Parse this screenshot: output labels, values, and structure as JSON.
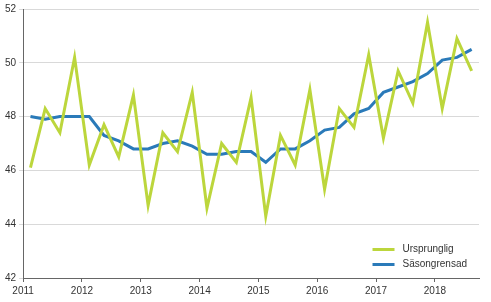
{
  "chart_data": {
    "type": "line",
    "x": [
      2011.125,
      2011.375,
      2011.625,
      2011.875,
      2012.125,
      2012.375,
      2012.625,
      2012.875,
      2013.125,
      2013.375,
      2013.625,
      2013.875,
      2014.125,
      2014.375,
      2014.625,
      2014.875,
      2015.125,
      2015.375,
      2015.625,
      2015.875,
      2016.125,
      2016.375,
      2016.625,
      2016.875,
      2017.125,
      2017.375,
      2017.625,
      2017.875,
      2018.125,
      2018.375,
      2018.625
    ],
    "series": [
      {
        "name": "Ursprunglig",
        "color": "#bcd63c",
        "values": [
          46.1,
          48.3,
          47.4,
          50.2,
          46.2,
          47.7,
          46.5,
          48.8,
          44.7,
          47.4,
          46.7,
          48.9,
          44.6,
          47.0,
          46.3,
          48.7,
          44.3,
          47.3,
          46.2,
          49.0,
          45.3,
          48.3,
          47.6,
          50.3,
          47.2,
          49.7,
          48.5,
          51.5,
          48.3,
          50.9,
          49.7
        ]
      },
      {
        "name": "Säsongrensad",
        "color": "#2a7ab9",
        "values": [
          48.0,
          47.9,
          48.0,
          48.0,
          48.0,
          47.3,
          47.1,
          46.8,
          46.8,
          47.0,
          47.1,
          46.9,
          46.6,
          46.6,
          46.7,
          46.7,
          46.3,
          46.8,
          46.8,
          47.1,
          47.5,
          47.6,
          48.1,
          48.3,
          48.9,
          49.1,
          49.3,
          49.6,
          50.1,
          50.2,
          50.5
        ]
      }
    ],
    "xlim": [
      2011,
      2018.75
    ],
    "xticks": [
      2011,
      2012,
      2013,
      2014,
      2015,
      2016,
      2017,
      2018
    ],
    "ylim": [
      42,
      52
    ],
    "yticks": [
      42,
      44,
      46,
      48,
      50,
      52
    ],
    "grid": true,
    "legend": "lower right"
  }
}
